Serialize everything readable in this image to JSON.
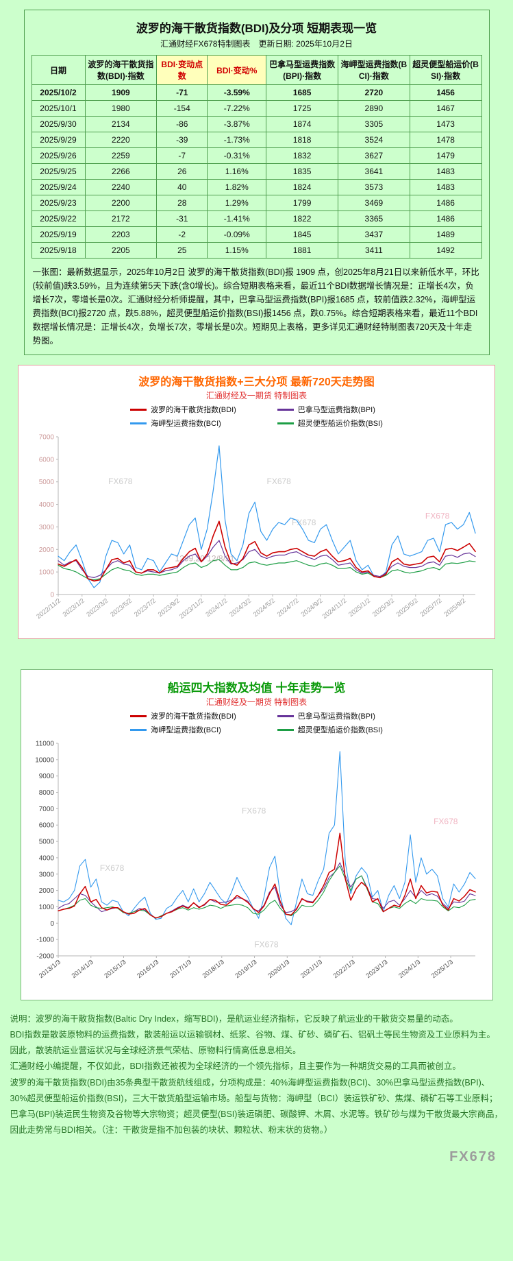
{
  "page": {
    "bg_color": "#ccffcc",
    "watermark": "FX678"
  },
  "table_section": {
    "title": "波罗的海干散货指数(BDI)及分项 短期表现一览",
    "subtitle": "汇通财经FX678特制图表　更新日期: 2025年10月2日",
    "columns": [
      "日期",
      "波罗的海干散货指数(BDI)·指数",
      "BDI·变动点数",
      "BDI·变动%",
      "巴拿马型运费指数(BPI)·指数",
      "海岬型运费指数(BCI)·指数",
      "超灵便型船运价(BSI)·指数"
    ],
    "rows": [
      [
        "2025/10/2",
        "1909",
        "-71",
        "-3.59%",
        "1685",
        "2720",
        "1456"
      ],
      [
        "2025/10/1",
        "1980",
        "-154",
        "-7.22%",
        "1725",
        "2890",
        "1467"
      ],
      [
        "2025/9/30",
        "2134",
        "-86",
        "-3.87%",
        "1874",
        "3305",
        "1473"
      ],
      [
        "2025/9/29",
        "2220",
        "-39",
        "-1.73%",
        "1818",
        "3524",
        "1478"
      ],
      [
        "2025/9/26",
        "2259",
        "-7",
        "-0.31%",
        "1832",
        "3627",
        "1479"
      ],
      [
        "2025/9/25",
        "2266",
        "26",
        "1.16%",
        "1835",
        "3641",
        "1483"
      ],
      [
        "2025/9/24",
        "2240",
        "40",
        "1.82%",
        "1824",
        "3573",
        "1483"
      ],
      [
        "2025/9/23",
        "2200",
        "28",
        "1.29%",
        "1799",
        "3469",
        "1486"
      ],
      [
        "2025/9/22",
        "2172",
        "-31",
        "-1.41%",
        "1822",
        "3365",
        "1486"
      ],
      [
        "2025/9/19",
        "2203",
        "-2",
        "-0.09%",
        "1845",
        "3437",
        "1489"
      ],
      [
        "2025/9/18",
        "2205",
        "25",
        "1.15%",
        "1881",
        "3411",
        "1492"
      ]
    ],
    "note": "一张图：最新数据显示，2025年10月2日 波罗的海干散货指数(BDI)报 1909 点，创2025年8月21日以来新低水平，环比(较前值)跌3.59%，且为连续第5天下跌(含0增长)。综合短期表格来看，最近11个BDI数据增长情况是：正增长4次，负增长7次，零增长是0次。汇通财经分析师提醒，其中，巴拿马型运费指数(BPI)报1685 点，较前值跌2.32%，海岬型运费指数(BCI)报2720 点，跌5.88%，超灵便型船运价指数(BSI)报1456 点，跌0.75%。综合短期表格来看，最近11个BDI数据增长情况是：正增长4次，负增长7次，零增长是0次。短期见上表格，更多详见汇通财经特制图表720天及十年走势图。"
  },
  "chart_data": [
    {
      "type": "line",
      "title": "波罗的海干散货指数+三大分项  最新720天走势图",
      "subtitle": "汇通财经及一期货 特制图表",
      "ylim": [
        0,
        7000
      ],
      "ystep": 1000,
      "grid": false,
      "legend_position": "top-center",
      "tick_color": "#cc9a9a",
      "xtick_color": "#9a9a9a",
      "x_span": 0.971,
      "x_labels": [
        "2022/11/2",
        "2023/1/2",
        "2023/3/2",
        "2023/5/2",
        "2023/7/2",
        "2023/9/2",
        "2023/11/2",
        "2024/1/2",
        "2024/3/2",
        "2024/5/2",
        "2024/7/2",
        "2024/9/2",
        "2024/11/2",
        "2025/1/2",
        "2025/3/2",
        "2025/5/2",
        "2025/7/2",
        "2025/9/2"
      ],
      "series": [
        {
          "name": "波罗的海干散货指数(BDI)",
          "color": "#cc0000",
          "z": 4,
          "width": 1.6,
          "values": [
            1350,
            1250,
            1400,
            1550,
            1200,
            700,
            600,
            650,
            1100,
            1550,
            1600,
            1400,
            1500,
            1000,
            950,
            1100,
            1100,
            950,
            1150,
            1200,
            1250,
            1600,
            1900,
            2050,
            1450,
            1800,
            2600,
            3250,
            2100,
            1400,
            1300,
            1600,
            2200,
            2350,
            1850,
            1700,
            1850,
            1900,
            1900,
            2000,
            2050,
            1900,
            1750,
            1700,
            1900,
            2000,
            1700,
            1450,
            1500,
            1600,
            1200,
            1000,
            1050,
            800,
            750,
            900,
            1450,
            1600,
            1350,
            1300,
            1350,
            1400,
            1650,
            1700,
            1450,
            2000,
            2050,
            1950,
            2100,
            2260,
            1909
          ]
        },
        {
          "name": "巴拿马型运费指数(BPI)",
          "color": "#663399",
          "z": 2,
          "width": 1.2,
          "values": [
            1500,
            1300,
            1450,
            1500,
            1100,
            800,
            750,
            850,
            1100,
            1400,
            1500,
            1350,
            1300,
            1000,
            950,
            1050,
            1000,
            950,
            1050,
            1100,
            1200,
            1500,
            1700,
            1800,
            1450,
            1700,
            2100,
            2400,
            1700,
            1350,
            1400,
            1550,
            1900,
            2000,
            1700,
            1600,
            1700,
            1750,
            1750,
            1850,
            1900,
            1750,
            1650,
            1550,
            1700,
            1750,
            1550,
            1300,
            1350,
            1400,
            1100,
            950,
            1000,
            850,
            800,
            950,
            1250,
            1400,
            1250,
            1200,
            1200,
            1250,
            1400,
            1450,
            1300,
            1700,
            1750,
            1650,
            1800,
            1845,
            1685
          ]
        },
        {
          "name": "海岬型运费指数(BCI)",
          "color": "#3399ee",
          "z": 1,
          "width": 1.2,
          "values": [
            1700,
            1500,
            1900,
            2200,
            1500,
            700,
            300,
            550,
            1700,
            2400,
            2300,
            1800,
            2200,
            1200,
            1100,
            1600,
            1500,
            1000,
            1400,
            1800,
            1700,
            2400,
            3100,
            3400,
            2000,
            2900,
            4600,
            6600,
            3300,
            1800,
            1500,
            2200,
            3600,
            4100,
            2800,
            2400,
            2900,
            3200,
            3100,
            3400,
            3300,
            2900,
            2400,
            2300,
            2900,
            3100,
            2400,
            1800,
            2100,
            2400,
            1500,
            1100,
            1300,
            800,
            750,
            1000,
            2200,
            2600,
            1800,
            1700,
            1800,
            1900,
            2400,
            2500,
            1900,
            3100,
            3200,
            2900,
            3100,
            3640,
            2720
          ]
        },
        {
          "name": "超灵便型船运价指数(BSI)",
          "color": "#1d9e45",
          "z": 3,
          "width": 1.2,
          "values": [
            1300,
            1150,
            1100,
            1000,
            850,
            700,
            650,
            700,
            900,
            1100,
            1200,
            1100,
            1050,
            900,
            850,
            900,
            900,
            850,
            900,
            950,
            1000,
            1200,
            1350,
            1400,
            1200,
            1300,
            1500,
            1550,
            1300,
            1100,
            1100,
            1200,
            1400,
            1450,
            1350,
            1300,
            1350,
            1400,
            1400,
            1450,
            1500,
            1400,
            1300,
            1250,
            1350,
            1400,
            1300,
            1150,
            1150,
            1200,
            1000,
            900,
            950,
            800,
            750,
            850,
            1050,
            1100,
            1000,
            950,
            1000,
            1050,
            1150,
            1200,
            1100,
            1350,
            1400,
            1380,
            1420,
            1490,
            1456
          ]
        }
      ],
      "watermarks": [
        {
          "text": "FX678",
          "x": 0.12,
          "y": 0.3,
          "color": "#cccccc"
        },
        {
          "text": "FX678",
          "x": 0.5,
          "y": 0.3,
          "color": "#cccccc"
        },
        {
          "text": "FX678",
          "x": 0.56,
          "y": 0.56,
          "color": "#cccccc"
        },
        {
          "text": "FX678",
          "x": 0.88,
          "y": 0.52,
          "color": "#f0b4c2"
        },
        {
          "text": "1299.20 12/8/31",
          "x": 0.28,
          "y": 0.79,
          "color": "#c2b2b2"
        }
      ]
    },
    {
      "type": "line",
      "title": "船运四大指数及均值 十年走势一览",
      "subtitle": "汇通财经及一期货 特制图表",
      "ylim": [
        -2000,
        11000
      ],
      "ystep": 1000,
      "grid": false,
      "legend_position": "top-center",
      "tick_color": "#444444",
      "xtick_color": "#555555",
      "x_span": 0.941,
      "x_labels": [
        "2013/1/3",
        "2014/1/3",
        "2015/1/3",
        "2016/1/3",
        "2017/1/3",
        "2018/1/3",
        "2019/1/3",
        "2020/1/3",
        "2021/1/3",
        "2022/1/3",
        "2023/1/3",
        "2024/1/3",
        "2025/1/3"
      ],
      "series": [
        {
          "name": "波罗的海干散货指数(BDI)",
          "color": "#cc0000",
          "z": 4,
          "width": 1.5,
          "values": [
            750,
            850,
            900,
            1050,
            1800,
            2250,
            1300,
            1450,
            950,
            800,
            950,
            950,
            700,
            560,
            600,
            800,
            900,
            500,
            320,
            400,
            600,
            700,
            900,
            1050,
            900,
            1250,
            950,
            1150,
            1450,
            1400,
            1150,
            1100,
            1350,
            1700,
            1500,
            1270,
            900,
            650,
            1050,
            1800,
            2400,
            1300,
            550,
            500,
            850,
            1500,
            1300,
            1250,
            1700,
            2300,
            3100,
            3300,
            5500,
            2700,
            1400,
            2100,
            2500,
            2200,
            1300,
            1500,
            700,
            900,
            1100,
            1000,
            1700,
            2700,
            1500,
            2300,
            1850,
            1950,
            1900,
            1100,
            800,
            1500,
            1350,
            1650,
            2050,
            1909
          ]
        },
        {
          "name": "巴拿马型运费指数(BPI)",
          "color": "#663399",
          "z": 2,
          "width": 1.1,
          "values": [
            900,
            1100,
            1200,
            1500,
            1800,
            1700,
            1300,
            1000,
            700,
            800,
            900,
            950,
            650,
            600,
            700,
            900,
            800,
            500,
            300,
            450,
            600,
            750,
            950,
            1100,
            950,
            1250,
            1000,
            1100,
            1450,
            1300,
            1250,
            1300,
            1400,
            1550,
            1500,
            1350,
            850,
            750,
            1100,
            1900,
            2200,
            1100,
            650,
            700,
            900,
            1450,
            1350,
            1300,
            1700,
            2100,
            2800,
            3100,
            3700,
            2900,
            2200,
            2700,
            2900,
            2200,
            1500,
            1450,
            900,
            1300,
            1400,
            1100,
            1500,
            2000,
            1550,
            2000,
            1700,
            1800,
            1650,
            1200,
            900,
            1300,
            1250,
            1350,
            1800,
            1685
          ]
        },
        {
          "name": "海岬型运费指数(BCI)",
          "color": "#3399ee",
          "z": 1,
          "width": 1.1,
          "values": [
            1400,
            1300,
            1500,
            2000,
            3500,
            3900,
            2200,
            2700,
            1300,
            1100,
            1400,
            1300,
            700,
            450,
            900,
            1300,
            1600,
            600,
            230,
            300,
            900,
            1100,
            1600,
            2000,
            1300,
            2100,
            1300,
            1800,
            2500,
            2000,
            1500,
            1200,
            1900,
            2800,
            2100,
            1600,
            900,
            300,
            1600,
            3400,
            4100,
            1700,
            300,
            -100,
            1300,
            2700,
            1800,
            1700,
            2600,
            3300,
            5500,
            6000,
            10500,
            3700,
            1800,
            2900,
            3400,
            3000,
            1600,
            2000,
            700,
            1700,
            2300,
            1500,
            2500,
            5400,
            2500,
            4000,
            3000,
            3300,
            2900,
            1500,
            1000,
            2400,
            1900,
            2400,
            3100,
            2720
          ]
        },
        {
          "name": "超灵便型船运价指数(BSI)",
          "color": "#1d9e45",
          "z": 3,
          "width": 1.1,
          "values": [
            750,
            850,
            950,
            1100,
            1400,
            1500,
            1100,
            950,
            900,
            950,
            1000,
            900,
            650,
            600,
            700,
            800,
            750,
            500,
            300,
            450,
            600,
            700,
            850,
            950,
            800,
            950,
            850,
            950,
            1100,
            1050,
            900,
            1050,
            1100,
            1150,
            1100,
            950,
            600,
            550,
            800,
            1200,
            1400,
            900,
            550,
            450,
            700,
            1100,
            1000,
            1050,
            1400,
            1900,
            2600,
            3100,
            3500,
            2700,
            2000,
            2700,
            2900,
            2100,
            1300,
            1200,
            700,
            900,
            1000,
            900,
            1200,
            1400,
            1200,
            1500,
            1400,
            1400,
            1350,
            1000,
            750,
            1000,
            950,
            1100,
            1400,
            1456
          ]
        }
      ],
      "watermarks": [
        {
          "text": "FX678",
          "x": 0.44,
          "y": 0.33,
          "color": "#cccccc"
        },
        {
          "text": "FX678",
          "x": 0.1,
          "y": 0.6,
          "color": "#cccccc"
        },
        {
          "text": "FX678",
          "x": 0.9,
          "y": 0.38,
          "color": "#f0b4c2"
        },
        {
          "text": "FX678",
          "x": 0.47,
          "y": 0.96,
          "color": "#cccccc"
        }
      ]
    }
  ],
  "description": "说明：波罗的海干散货指数(Baltic Dry Index，缩写BDI)，是航运业经济指标，它反映了航运业的干散货交易量的动态。\nBDI指数是散装原物料的运费指数，散装船运以运输钢材、纸浆、谷物、煤、矿砂、磷矿石、铝矾土等民生物资及工业原料为主。\n因此，散装航运业营运状况与全球经济景气荣枯、原物料行情高低息息相关。\n汇通财经小编提醒，不仅如此，BDI指数还被视为全球经济的一个领先指标，且主要作为一种期货交易的工具而被创立。\n波罗的海干散货指数(BDI)由35条典型干散货航线组成，分项构成是：40%海岬型运费指数(BCI)、30%巴拿马型运费指数(BPI)、30%超灵便型船运价指数(BSI)，三大干散货船型运输市场。船型与货物：海岬型（BCI）装运铁矿砂、焦煤、磷矿石等工业原料；巴拿马(BPI)装运民生物资及谷物等大宗物资；超灵便型(BSI)装运磷肥、碳酸钾、木屑、水泥等。铁矿砂与煤为干散货最大宗商品，因此走势常与BDI相关。（注：干散货是指不加包装的块状、颗粒状、粉末状的货物。）"
}
